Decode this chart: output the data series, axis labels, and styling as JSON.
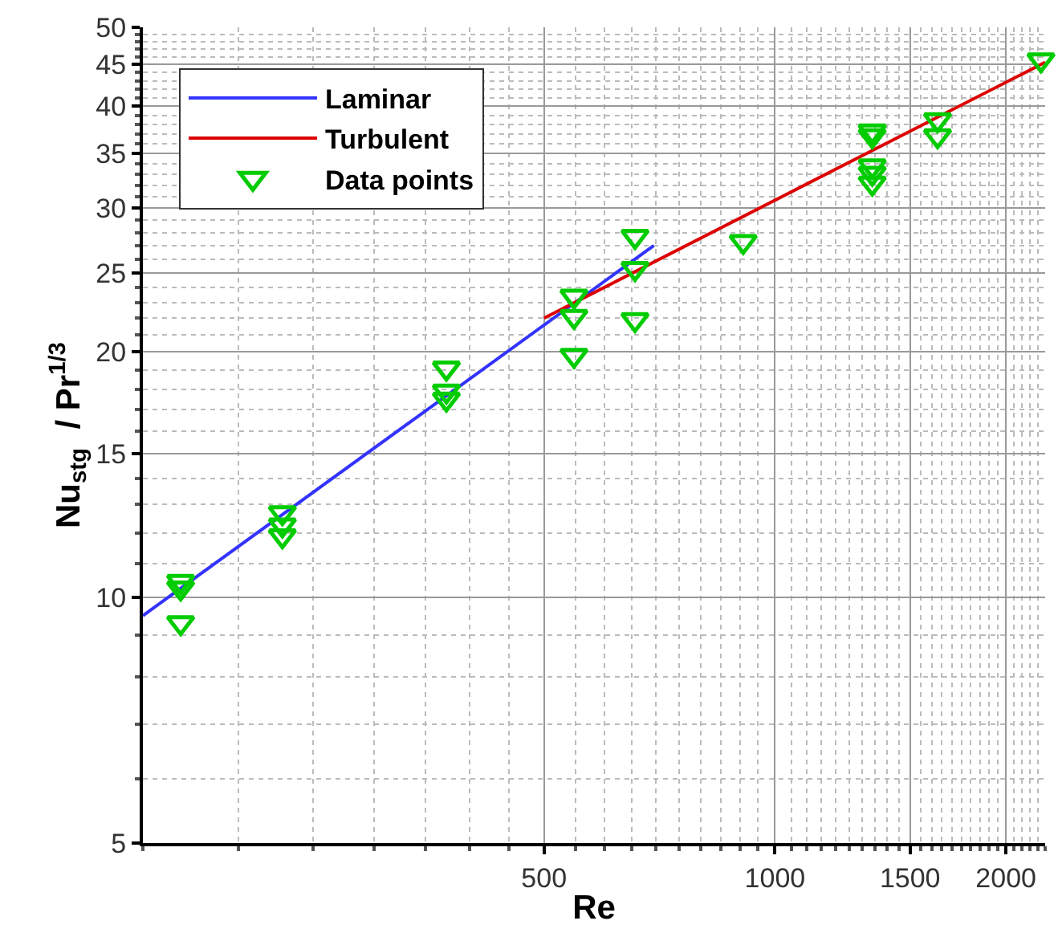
{
  "chart_data": {
    "type": "scatter",
    "xlabel": "Re",
    "ylabel": "Nu$_{stg}$  / Pr$^{1/3}$",
    "log": "xy",
    "grid": true,
    "legend": "top left",
    "xlim": [
      150,
      2250
    ],
    "xticks": [
      500,
      1000,
      1500,
      2000
    ],
    "ylim": [
      5,
      50
    ],
    "yticks": [
      5,
      10,
      15,
      20,
      25,
      30,
      35,
      40,
      45,
      50
    ],
    "series": [
      {
        "name": "Laminar",
        "type": "line",
        "color": "#3333ff",
        "x": [
          150,
          695
        ],
        "values": [
          9.5,
          27.0
        ]
      },
      {
        "name": "Turbulent",
        "type": "line",
        "color": "#dd0000",
        "x": [
          500,
          2250
        ],
        "values": [
          22.0,
          45.3
        ]
      },
      {
        "name": "Data points",
        "marker": "triangle",
        "color": "#00cc00",
        "x": [
          168,
          168,
          168,
          228,
          228,
          228,
          373,
          373,
          373,
          547,
          547,
          547,
          657,
          657,
          657,
          909,
          1339,
          1339,
          1339,
          1339,
          1339,
          1629,
          1629,
          2222
        ],
        "values": [
          10.46,
          10.27,
          9.31,
          12.7,
          12.27,
          11.9,
          19.1,
          17.9,
          17.5,
          23.4,
          22.1,
          19.8,
          27.7,
          25.3,
          21.9,
          27.3,
          37.3,
          36.8,
          33.8,
          33.1,
          32.2,
          38.5,
          36.8,
          45.6
        ]
      }
    ]
  }
}
